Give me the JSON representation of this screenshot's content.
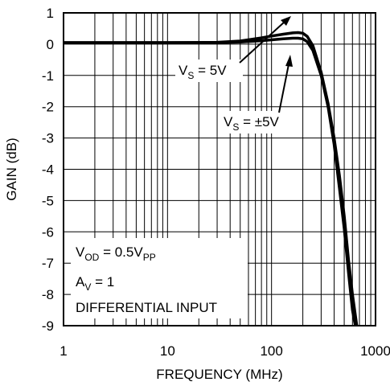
{
  "chart_data": {
    "type": "line",
    "xlabel": "FREQUENCY (MHz)",
    "ylabel": "GAIN (dB)",
    "xscale": "log",
    "xlim": [
      1,
      1000
    ],
    "ylim": [
      -9,
      1
    ],
    "grid": true,
    "x_tick_labels": [
      "1",
      "10",
      "100",
      "1000"
    ],
    "y_tick_labels": [
      "1",
      "0",
      "-1",
      "-2",
      "-3",
      "-4",
      "-5",
      "-6",
      "-7",
      "-8",
      "-9"
    ],
    "series": [
      {
        "name": "VS = 5V",
        "x": [
          1,
          10,
          30,
          50,
          80,
          100,
          130,
          160,
          180,
          200,
          220,
          250,
          300,
          350,
          400,
          450,
          500,
          550,
          600,
          660
        ],
        "y": [
          0.05,
          0.05,
          0.06,
          0.1,
          0.2,
          0.26,
          0.32,
          0.36,
          0.37,
          0.35,
          0.25,
          -0.05,
          -0.9,
          -1.9,
          -3.0,
          -4.2,
          -5.5,
          -6.9,
          -8.0,
          -9.0
        ]
      },
      {
        "name": "VS = ±5V",
        "x": [
          1,
          10,
          30,
          50,
          80,
          100,
          130,
          160,
          180,
          200,
          220,
          250,
          300,
          350,
          400,
          450,
          500,
          550,
          600,
          640
        ],
        "y": [
          0.05,
          0.05,
          0.05,
          0.07,
          0.11,
          0.14,
          0.17,
          0.19,
          0.19,
          0.17,
          0.08,
          -0.2,
          -1.0,
          -2.0,
          -3.2,
          -4.6,
          -5.9,
          -7.3,
          -8.5,
          -9.0
        ]
      }
    ],
    "annotations": [
      {
        "id": "vs-5v",
        "main": "V",
        "sub": "S",
        "rest": " = 5V"
      },
      {
        "id": "vs-pm5v",
        "main": "V",
        "sub": "S",
        "rest": " = ±5V"
      }
    ],
    "conditions_box": {
      "line1_main": "V",
      "line1_sub": "OD",
      "line1_rest": " = 0.5V",
      "line1_sub2": "PP",
      "line2_main": "A",
      "line2_sub": "V",
      "line2_rest": " = 1",
      "line3": "DIFFERENTIAL INPUT"
    }
  }
}
